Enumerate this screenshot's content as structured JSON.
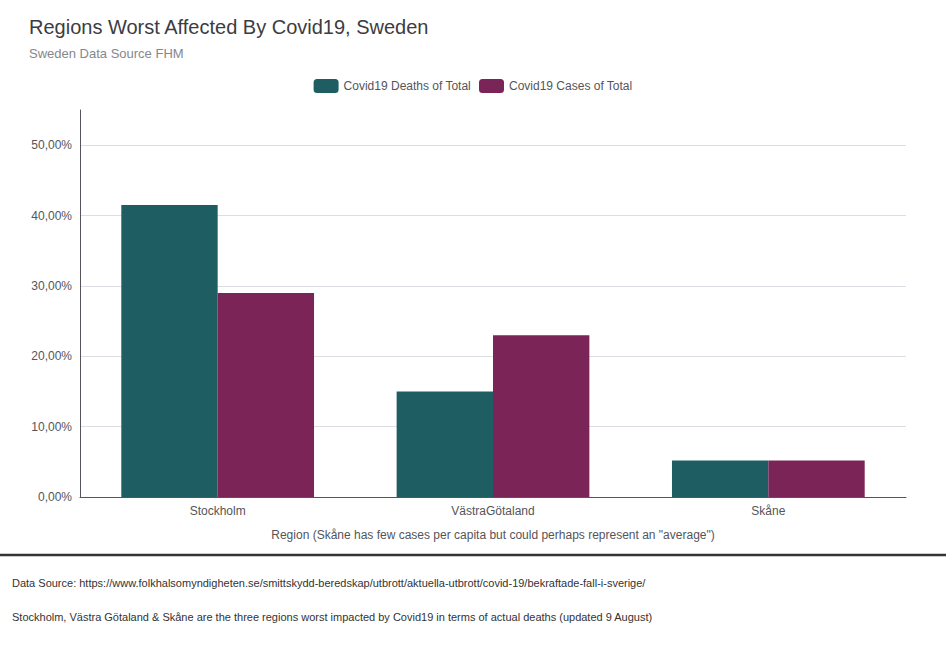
{
  "chart_data": {
    "type": "bar",
    "title": "Regions Worst Affected By Covid19, Sweden",
    "subtitle": "Sweden Data Source FHM",
    "categories": [
      "Stockholm",
      "VästraGötaland",
      "Skåne"
    ],
    "series": [
      {
        "name": "Covid19 Deaths of Total",
        "color": "#1e5e63",
        "values": [
          0.415,
          0.15,
          0.052
        ]
      },
      {
        "name": "Covid19 Cases of Total",
        "color": "#7b2457",
        "values": [
          0.29,
          0.23,
          0.052
        ]
      }
    ],
    "xlabel": "Region (Skåne has few cases per capita but could perhaps represent an \"average\")",
    "ylim": [
      0,
      0.55
    ],
    "yticks": [
      {
        "value": 0.0,
        "label": "0,00%"
      },
      {
        "value": 0.1,
        "label": "10,00%"
      },
      {
        "value": 0.2,
        "label": "20,00%"
      },
      {
        "value": 0.3,
        "label": "30,00%"
      },
      {
        "value": 0.4,
        "label": "40,00%"
      },
      {
        "value": 0.5,
        "label": "50,00%"
      }
    ],
    "grid": true,
    "legend": "top",
    "annotations": [
      "Data Source: https://www.folkhalsomyndigheten.se/smittskydd-beredskap/utbrott/aktuella-utbrott/covid-19/bekraftade-fall-i-sverige/",
      "Stockholm, Västra Götaland & Skåne are the three regions worst impacted by Covid19 in terms of actual deaths (updated 9 August)"
    ]
  }
}
